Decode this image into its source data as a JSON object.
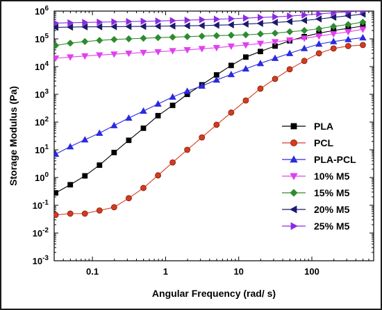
{
  "chart_data": {
    "type": "line",
    "xlabel": "Angular Frequency (rad/ s)",
    "ylabel": "Storage Modulus (Pa)",
    "xscale": "log",
    "yscale": "log",
    "xlim": [
      0.03,
      700
    ],
    "ylim": [
      0.001,
      1000000
    ],
    "x_ticks": [
      0.1,
      1,
      10,
      100
    ],
    "x_tick_labels": [
      "0.1",
      "1",
      "10",
      "100"
    ],
    "y_ticks": [
      0.001,
      0.01,
      0.1,
      1,
      10,
      100,
      1000,
      10000,
      100000,
      1000000
    ],
    "y_tick_labels": [
      {
        "base": "10",
        "exp": "-3"
      },
      {
        "base": "10",
        "exp": "-2"
      },
      {
        "base": "10",
        "exp": "-1"
      },
      {
        "base": "10",
        "exp": "0"
      },
      {
        "base": "10",
        "exp": "1"
      },
      {
        "base": "10",
        "exp": "2"
      },
      {
        "base": "10",
        "exp": "3"
      },
      {
        "base": "10",
        "exp": "4"
      },
      {
        "base": "10",
        "exp": "5"
      },
      {
        "base": "10",
        "exp": "6"
      }
    ],
    "grid": false,
    "legend_position": "right",
    "x": [
      0.0314,
      0.0498,
      0.0789,
      0.125,
      0.198,
      0.314,
      0.498,
      0.789,
      1.25,
      1.98,
      3.14,
      4.98,
      7.89,
      12.5,
      19.8,
      31.4,
      49.8,
      78.9,
      125,
      198,
      314,
      498
    ],
    "series": [
      {
        "name": "PLA",
        "color": "#000000",
        "marker": "square",
        "values": [
          0.28,
          0.55,
          1.15,
          2.8,
          8,
          22,
          60,
          170,
          400,
          1000,
          2200,
          5000,
          11000,
          22000,
          35000,
          55000,
          85000,
          120000,
          160000,
          200000,
          240000,
          290000
        ]
      },
      {
        "name": "PCL",
        "color": "#d63a1e",
        "marker": "circle",
        "values": [
          0.045,
          0.05,
          0.05,
          0.065,
          0.085,
          0.18,
          0.42,
          1.2,
          3.5,
          10,
          28,
          80,
          220,
          600,
          1600,
          3600,
          8000,
          16000,
          30000,
          45000,
          55000,
          60000
        ]
      },
      {
        "name": "PLA-PCL",
        "color": "#2a2ae0",
        "marker": "triangle-up",
        "values": [
          7,
          13,
          23,
          40,
          75,
          140,
          250,
          450,
          800,
          1300,
          2000,
          3300,
          5200,
          8300,
          13000,
          20000,
          30000,
          45000,
          65000,
          80000,
          95000,
          110000
        ]
      },
      {
        "name": "10% M5",
        "color": "#e040f0",
        "marker": "triangle-down",
        "values": [
          20000,
          22000,
          24000,
          26000,
          28000,
          30000,
          32000,
          34000,
          37000,
          40000,
          44000,
          48000,
          54000,
          60000,
          68000,
          78000,
          90000,
          105000,
          125000,
          150000,
          180000,
          220000
        ]
      },
      {
        "name": "15% M5",
        "color": "#2e8b2e",
        "marker": "diamond",
        "values": [
          58000,
          70000,
          80000,
          88000,
          95000,
          100000,
          105000,
          110000,
          115000,
          120000,
          125000,
          130000,
          135000,
          140000,
          150000,
          160000,
          180000,
          200000,
          230000,
          280000,
          330000,
          400000
        ]
      },
      {
        "name": "20% M5",
        "color": "#1a1a6e",
        "marker": "triangle-left",
        "values": [
          260000,
          265000,
          270000,
          272000,
          275000,
          278000,
          280000,
          285000,
          290000,
          295000,
          300000,
          310000,
          320000,
          340000,
          360000,
          390000,
          420000,
          460000,
          520000,
          600000,
          680000,
          780000
        ]
      },
      {
        "name": "25% M5",
        "color": "#8a2be2",
        "marker": "triangle-right",
        "values": [
          370000,
          380000,
          390000,
          400000,
          410000,
          420000,
          430000,
          440000,
          455000,
          470000,
          490000,
          510000,
          530000,
          560000,
          590000,
          620000,
          660000,
          720000,
          790000,
          870000,
          950000,
          1000000
        ]
      }
    ]
  }
}
